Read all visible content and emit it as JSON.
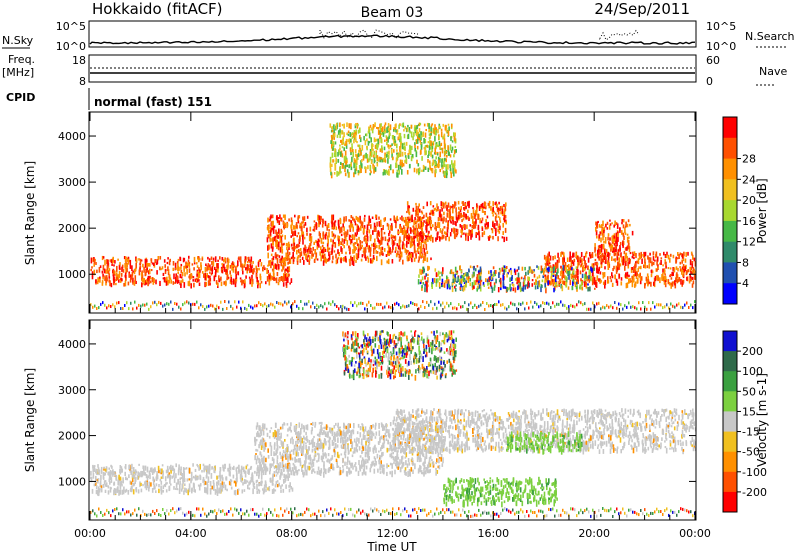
{
  "header": {
    "station": "Hokkaido (fitACF)",
    "beam": "Beam 03",
    "date": "24/Sep/2011"
  },
  "top_panels": {
    "nsky_label": "N.Sky",
    "nsky_ticks": [
      "10^5",
      "10^0"
    ],
    "nsearch_label": "N.Search",
    "freq_label_1": "Freq.",
    "freq_label_2": "[MHz]",
    "freq_ticks": [
      "18",
      "8"
    ],
    "nave_ticks": [
      "60",
      "0"
    ],
    "nave_label": "Nave",
    "cpid_label": "CPID",
    "cpid_value": "normal (fast) 151"
  },
  "chart_data": [
    {
      "type": "heatmap",
      "quantity": "power",
      "ylabel": "Slant Range [km]",
      "xlabel": "Time UT",
      "x_ticks": [
        "00:00",
        "04:00",
        "08:00",
        "12:00",
        "16:00",
        "20:00",
        "00:00"
      ],
      "xlim_hours": [
        0,
        24
      ],
      "y_ticks": [
        "1000",
        "2000",
        "3000",
        "4000"
      ],
      "ylim_km": [
        180,
        4500
      ],
      "colorbar_label": "Power [dB]",
      "colorbar_ticks": [
        "4",
        "8",
        "12",
        "16",
        "20",
        "24",
        "28"
      ],
      "colorbar_colors": [
        "#0000ff",
        "#2050b0",
        "#2f8a6a",
        "#46b846",
        "#a8d830",
        "#f0c020",
        "#ff9000",
        "#ff5000",
        "#ff0000"
      ],
      "features": [
        {
          "t0": 0.0,
          "t1": 8.0,
          "r0": 800,
          "r1": 1400,
          "level": "strong"
        },
        {
          "t0": 7.0,
          "t1": 13.5,
          "r0": 1300,
          "r1": 2300,
          "level": "strong"
        },
        {
          "t0": 12.5,
          "t1": 16.5,
          "r0": 1800,
          "r1": 2600,
          "level": "strong"
        },
        {
          "t0": 18.0,
          "t1": 24.0,
          "r0": 800,
          "r1": 1500,
          "level": "strong"
        },
        {
          "t0": 20.0,
          "t1": 21.5,
          "r0": 1400,
          "r1": 2200,
          "level": "strong"
        },
        {
          "t0": 13.0,
          "t1": 20.0,
          "r0": 700,
          "r1": 1200,
          "level": "mixed"
        },
        {
          "t0": 9.5,
          "t1": 14.5,
          "r0": 3200,
          "r1": 4300,
          "level": "weak"
        }
      ]
    },
    {
      "type": "heatmap",
      "quantity": "velocity",
      "ylabel": "Slant Range [km]",
      "xlabel": "Time UT",
      "x_ticks": [
        "00:00",
        "04:00",
        "08:00",
        "12:00",
        "16:00",
        "20:00",
        "00:00"
      ],
      "xlim_hours": [
        0,
        24
      ],
      "y_ticks": [
        "1000",
        "2000",
        "3000",
        "4000"
      ],
      "ylim_km": [
        180,
        4500
      ],
      "colorbar_label": "Velocity [m s-1]",
      "colorbar_ticks": [
        "200",
        "100",
        "50",
        "15",
        "-15",
        "-50",
        "-100",
        "-200"
      ],
      "colorbar_colors": [
        "#1010d0",
        "#2f6a4a",
        "#3aa040",
        "#7cd040",
        "#c8c8c8",
        "#f0c020",
        "#ff9000",
        "#ff5000",
        "#ff0000"
      ],
      "features": [
        {
          "t0": 0.0,
          "t1": 8.0,
          "r0": 800,
          "r1": 1400,
          "level": "ground"
        },
        {
          "t0": 6.5,
          "t1": 14.0,
          "r0": 1200,
          "r1": 2300,
          "level": "ground"
        },
        {
          "t0": 12.0,
          "t1": 24.0,
          "r0": 1700,
          "r1": 2600,
          "level": "ground"
        },
        {
          "t0": 14.0,
          "t1": 18.5,
          "r0": 550,
          "r1": 1100,
          "level": "positive"
        },
        {
          "t0": 16.5,
          "t1": 19.5,
          "r0": 1700,
          "r1": 2100,
          "level": "positive"
        },
        {
          "t0": 10.0,
          "t1": 14.5,
          "r0": 3300,
          "r1": 4300,
          "level": "mixed"
        }
      ]
    }
  ]
}
